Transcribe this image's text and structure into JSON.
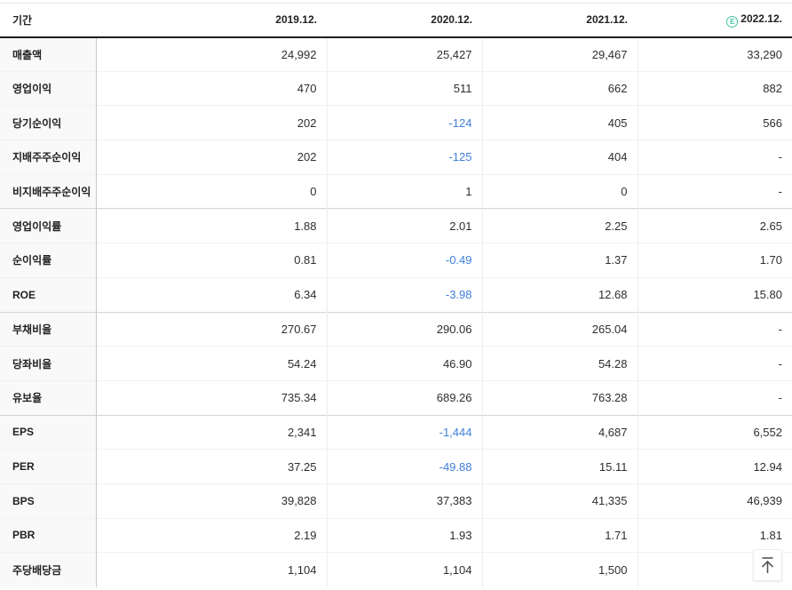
{
  "colors": {
    "negative_value": "#3f7fd8",
    "estimate_badge": "#45c0a1",
    "header_rule": "#1e1e1e"
  },
  "table": {
    "header": {
      "period_label": "기간",
      "columns": [
        {
          "label": "2019.12.",
          "estimate": false
        },
        {
          "label": "2020.12.",
          "estimate": false
        },
        {
          "label": "2021.12.",
          "estimate": false
        },
        {
          "label": "2022.12.",
          "estimate": true
        }
      ],
      "estimate_badge_glyph": "E"
    },
    "sections": [
      {
        "rows": [
          {
            "label": "매출액",
            "values": [
              "24,992",
              "25,427",
              "29,467",
              "33,290"
            ]
          },
          {
            "label": "영업이익",
            "values": [
              "470",
              "511",
              "662",
              "882"
            ]
          },
          {
            "label": "당기순이익",
            "values": [
              "202",
              "-124",
              "405",
              "566"
            ]
          },
          {
            "label": "지배주주순이익",
            "values": [
              "202",
              "-125",
              "404",
              "-"
            ]
          },
          {
            "label": "비지배주주순이익",
            "values": [
              "0",
              "1",
              "0",
              "-"
            ]
          }
        ]
      },
      {
        "rows": [
          {
            "label": "영업이익률",
            "values": [
              "1.88",
              "2.01",
              "2.25",
              "2.65"
            ]
          },
          {
            "label": "순이익률",
            "values": [
              "0.81",
              "-0.49",
              "1.37",
              "1.70"
            ]
          },
          {
            "label": "ROE",
            "values": [
              "6.34",
              "-3.98",
              "12.68",
              "15.80"
            ]
          }
        ]
      },
      {
        "rows": [
          {
            "label": "부채비율",
            "values": [
              "270.67",
              "290.06",
              "265.04",
              "-"
            ]
          },
          {
            "label": "당좌비율",
            "values": [
              "54.24",
              "46.90",
              "54.28",
              "-"
            ]
          },
          {
            "label": "유보율",
            "values": [
              "735.34",
              "689.26",
              "763.28",
              "-"
            ]
          }
        ]
      },
      {
        "rows": [
          {
            "label": "EPS",
            "values": [
              "2,341",
              "-1,444",
              "4,687",
              "6,552"
            ]
          },
          {
            "label": "PER",
            "values": [
              "37.25",
              "-49.88",
              "15.11",
              "12.94"
            ]
          },
          {
            "label": "BPS",
            "values": [
              "39,828",
              "37,383",
              "41,335",
              "46,939"
            ]
          },
          {
            "label": "PBR",
            "values": [
              "2.19",
              "1.93",
              "1.71",
              "1.81"
            ]
          },
          {
            "label": "주당배당금",
            "values": [
              "1,104",
              "1,104",
              "1,500",
              ""
            ]
          }
        ]
      }
    ]
  },
  "scroll_top": {
    "obscured_fragment": "0"
  }
}
